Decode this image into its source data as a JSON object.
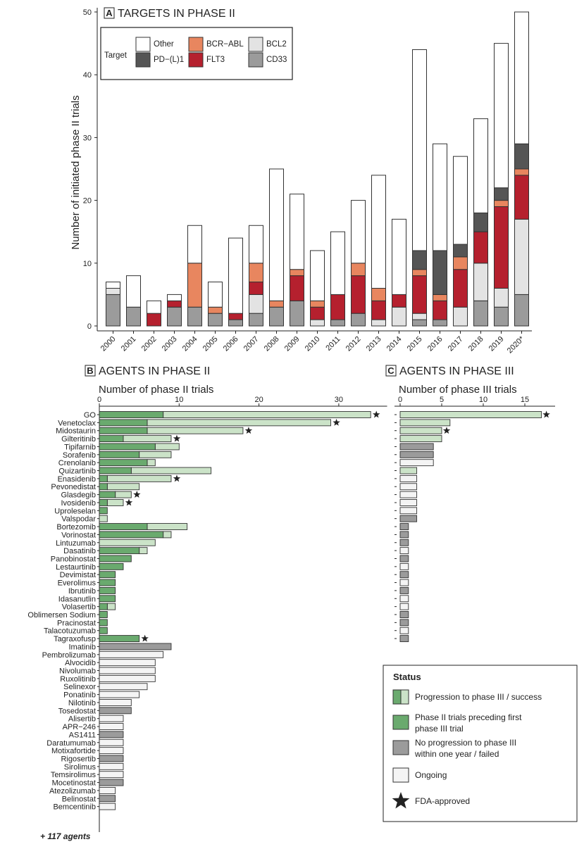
{
  "panel_a": {
    "letter": "A",
    "title": "TARGETS IN PHASE II"
  },
  "panel_b": {
    "letter": "B",
    "title": "AGENTS IN PHASE II",
    "axis_title": "Number of phase II trials",
    "more_agents": "+ 117 agents"
  },
  "panel_c": {
    "letter": "C",
    "title": "AGENTS IN PHASE III",
    "axis_title": "Number of phase III trials"
  },
  "legend_a": {
    "title": "Target",
    "entries": [
      {
        "label": "Other",
        "color": "#ffffff"
      },
      {
        "label": "PD−(L)1",
        "color": "#555555"
      },
      {
        "label": "BCR−ABL",
        "color": "#e8865f"
      },
      {
        "label": "FLT3",
        "color": "#b5202e"
      },
      {
        "label": "BCL2",
        "color": "#e3e3e3"
      },
      {
        "label": "CD33",
        "color": "#9b9b9b"
      }
    ]
  },
  "legend_status": {
    "title": "Status",
    "entries": [
      {
        "key": "progression",
        "text": [
          "Progression to phase III / success"
        ]
      },
      {
        "key": "preceding",
        "text": [
          "Phase II trials preceding first",
          "phase III trial"
        ]
      },
      {
        "key": "failed",
        "text": [
          "No progression to phase III",
          "within one year / failed"
        ]
      },
      {
        "key": "ongoing",
        "text": [
          "Ongoing"
        ]
      },
      {
        "key": "fda",
        "text": [
          "FDA-approved"
        ]
      }
    ]
  },
  "colors": {
    "green_dark": "#6aaa6e",
    "green_light": "#cbe3c8",
    "grey_failed": "#9b9b9b",
    "ongoing": "#f4f4f4",
    "outline": "#333333"
  },
  "chart_data": [
    {
      "type": "bar",
      "stacked": true,
      "panel": "A",
      "title": "TARGETS IN PHASE II",
      "ylabel": "Number of initiated phase II trials",
      "ylim": [
        0,
        50
      ],
      "yticks": [
        0,
        10,
        20,
        30,
        40,
        50
      ],
      "categories": [
        "2000",
        "2001",
        "2002",
        "2003",
        "2004",
        "2005",
        "2006",
        "2007",
        "2008",
        "2009",
        "2010",
        "2011",
        "2012",
        "2013",
        "2014",
        "2015",
        "2016",
        "2017",
        "2018",
        "2019",
        "2020*"
      ],
      "stack_order": [
        "CD33",
        "BCL2",
        "FLT3",
        "BCR−ABL",
        "PD−(L)1",
        "Other"
      ],
      "series": [
        {
          "name": "CD33",
          "values": [
            5,
            3,
            0,
            3,
            3,
            2,
            1,
            2,
            3,
            4,
            0,
            1,
            2,
            0,
            0,
            1,
            1,
            0,
            4,
            3,
            5
          ]
        },
        {
          "name": "BCL2",
          "values": [
            1,
            0,
            0,
            0,
            0,
            0,
            0,
            3,
            0,
            0,
            1,
            0,
            0,
            1,
            3,
            1,
            0,
            3,
            6,
            3,
            12
          ]
        },
        {
          "name": "FLT3",
          "values": [
            0,
            0,
            2,
            1,
            0,
            0,
            1,
            2,
            0,
            4,
            2,
            4,
            6,
            3,
            2,
            6,
            3,
            6,
            5,
            13,
            7
          ]
        },
        {
          "name": "BCR−ABL",
          "values": [
            0,
            0,
            0,
            0,
            7,
            1,
            0,
            3,
            1,
            1,
            1,
            0,
            2,
            2,
            0,
            1,
            1,
            2,
            0,
            1,
            1
          ]
        },
        {
          "name": "PD−(L)1",
          "values": [
            0,
            0,
            0,
            0,
            0,
            0,
            0,
            0,
            0,
            0,
            0,
            0,
            0,
            0,
            0,
            3,
            7,
            2,
            3,
            2,
            4
          ]
        },
        {
          "name": "Other",
          "values": [
            1,
            5,
            2,
            1,
            6,
            4,
            12,
            6,
            21,
            12,
            8,
            10,
            10,
            18,
            12,
            32,
            17,
            14,
            15,
            23,
            21
          ]
        }
      ]
    },
    {
      "type": "bar",
      "orientation": "horizontal",
      "panel": "B",
      "title": "AGENTS IN PHASE II",
      "xlabel": "Number of phase II trials",
      "xlim": [
        0,
        35
      ],
      "xticks": [
        0,
        10,
        20,
        30
      ],
      "agents": [
        {
          "name": "GO",
          "preceding": 8,
          "total": 34,
          "status": "progression",
          "p3": 17,
          "fda": true
        },
        {
          "name": "Venetoclax",
          "preceding": 6,
          "total": 29,
          "status": "progression",
          "p3": 6,
          "fda": true
        },
        {
          "name": "Midostaurin",
          "preceding": 6,
          "total": 18,
          "status": "progression",
          "p3": 5,
          "fda": true
        },
        {
          "name": "Gilteritinib",
          "preceding": 3,
          "total": 9,
          "status": "progression",
          "p3": 5,
          "fda": true
        },
        {
          "name": "Tipifarnib",
          "preceding": 7,
          "total": 10,
          "status": "progression",
          "p3": 4,
          "fda": false
        },
        {
          "name": "Sorafenib",
          "preceding": 5,
          "total": 9,
          "status": "progression",
          "p3": 4,
          "fda": false
        },
        {
          "name": "Crenolanib",
          "preceding": 6,
          "total": 7,
          "status": "progression",
          "p3": 4,
          "fda": false
        },
        {
          "name": "Quizartinib",
          "preceding": 4,
          "total": 14,
          "status": "progression",
          "p3": 2,
          "fda": false
        },
        {
          "name": "Enasidenib",
          "preceding": 1,
          "total": 9,
          "status": "progression",
          "p3": 2,
          "fda": true
        },
        {
          "name": "Pevonedistat",
          "preceding": 1,
          "total": 5,
          "status": "progression",
          "p3": 2,
          "fda": false
        },
        {
          "name": "Glasdegib",
          "preceding": 2,
          "total": 4,
          "status": "progression",
          "p3": 2,
          "fda": true
        },
        {
          "name": "Ivosidenib",
          "preceding": 1,
          "total": 3,
          "status": "progression",
          "p3": 2,
          "fda": true
        },
        {
          "name": "Uproleselan",
          "preceding": 1,
          "total": 1,
          "status": "progression",
          "p3": 2,
          "fda": false
        },
        {
          "name": "Valspodar",
          "preceding": 0,
          "total": 1,
          "status": "progression",
          "p3": 2,
          "fda": false
        },
        {
          "name": "Bortezomib",
          "preceding": 6,
          "total": 11,
          "status": "progression",
          "p3": 1,
          "fda": false
        },
        {
          "name": "Vorinostat",
          "preceding": 8,
          "total": 9,
          "status": "progression",
          "p3": 1,
          "fda": false
        },
        {
          "name": "Lintuzumab",
          "preceding": 0,
          "total": 7,
          "status": "progression",
          "p3": 1,
          "fda": false
        },
        {
          "name": "Dasatinib",
          "preceding": 5,
          "total": 6,
          "status": "progression",
          "p3": 1,
          "fda": false
        },
        {
          "name": "Panobinostat",
          "preceding": 4,
          "total": 4,
          "status": "progression",
          "p3": 1,
          "fda": false
        },
        {
          "name": "Lestaurtinib",
          "preceding": 3,
          "total": 3,
          "status": "progression",
          "p3": 1,
          "fda": false
        },
        {
          "name": "Devimistat",
          "preceding": 2,
          "total": 2,
          "status": "progression",
          "p3": 1,
          "fda": false
        },
        {
          "name": "Everolimus",
          "preceding": 2,
          "total": 2,
          "status": "progression",
          "p3": 1,
          "fda": false
        },
        {
          "name": "Ibrutinib",
          "preceding": 2,
          "total": 2,
          "status": "progression",
          "p3": 1,
          "fda": false
        },
        {
          "name": "Idasanutlin",
          "preceding": 2,
          "total": 2,
          "status": "progression",
          "p3": 1,
          "fda": false
        },
        {
          "name": "Volasertib",
          "preceding": 1,
          "total": 2,
          "status": "progression",
          "p3": 1,
          "fda": false
        },
        {
          "name": "Oblimersen Sodium",
          "preceding": 1,
          "total": 1,
          "status": "progression",
          "p3": 1,
          "fda": false
        },
        {
          "name": "Pracinostat",
          "preceding": 1,
          "total": 1,
          "status": "progression",
          "p3": 1,
          "fda": false
        },
        {
          "name": "Talacotuzumab",
          "preceding": 1,
          "total": 1,
          "status": "progression",
          "p3": 1,
          "fda": false
        },
        {
          "name": "Tagraxofusp",
          "preceding": 5,
          "total": 5,
          "status": "progression",
          "p3": 1,
          "fda": true
        },
        {
          "name": "Imatinib",
          "total": 9,
          "status": "failed"
        },
        {
          "name": "Pembrolizumab",
          "total": 8,
          "status": "ongoing"
        },
        {
          "name": "Alvocidib",
          "total": 7,
          "status": "ongoing"
        },
        {
          "name": "Nivolumab",
          "total": 7,
          "status": "ongoing"
        },
        {
          "name": "Ruxolitinib",
          "total": 7,
          "status": "ongoing"
        },
        {
          "name": "Selinexor",
          "total": 6,
          "status": "ongoing"
        },
        {
          "name": "Ponatinib",
          "total": 5,
          "status": "ongoing"
        },
        {
          "name": "Nilotinib",
          "total": 4,
          "status": "ongoing"
        },
        {
          "name": "Tosedostat",
          "total": 4,
          "status": "failed"
        },
        {
          "name": "Alisertib",
          "total": 3,
          "status": "ongoing"
        },
        {
          "name": "APR−246",
          "total": 3,
          "status": "ongoing"
        },
        {
          "name": "AS1411",
          "total": 3,
          "status": "failed"
        },
        {
          "name": "Daratumumab",
          "total": 3,
          "status": "ongoing"
        },
        {
          "name": "Motixafortide",
          "total": 3,
          "status": "ongoing"
        },
        {
          "name": "Rigosertib",
          "total": 3,
          "status": "failed"
        },
        {
          "name": "Sirolimus",
          "total": 3,
          "status": "ongoing"
        },
        {
          "name": "Temsirolimus",
          "total": 3,
          "status": "ongoing"
        },
        {
          "name": "Mocetinostat",
          "total": 3,
          "status": "failed"
        },
        {
          "name": "Atezolizumab",
          "total": 2,
          "status": "ongoing"
        },
        {
          "name": "Belinostat",
          "total": 2,
          "status": "failed"
        },
        {
          "name": "Bemcentinib",
          "total": 2,
          "status": "ongoing"
        }
      ]
    },
    {
      "type": "bar",
      "orientation": "horizontal",
      "panel": "C",
      "title": "AGENTS IN PHASE III",
      "xlabel": "Number of phase III trials",
      "xlim": [
        0,
        19
      ],
      "xticks": [
        0,
        5,
        10,
        15
      ],
      "rows": [
        {
          "value": 17,
          "status": "progression",
          "fda": true
        },
        {
          "value": 6,
          "status": "progression",
          "fda": false
        },
        {
          "value": 5,
          "status": "progression",
          "fda": true
        },
        {
          "value": 5,
          "status": "progression",
          "fda": false
        },
        {
          "value": 4,
          "status": "failed",
          "fda": false
        },
        {
          "value": 4,
          "status": "failed",
          "fda": false
        },
        {
          "value": 4,
          "status": "ongoing",
          "fda": false
        },
        {
          "value": 2,
          "status": "progression",
          "fda": false
        },
        {
          "value": 2,
          "status": "ongoing",
          "fda": false
        },
        {
          "value": 2,
          "status": "ongoing",
          "fda": false
        },
        {
          "value": 2,
          "status": "ongoing",
          "fda": false
        },
        {
          "value": 2,
          "status": "ongoing",
          "fda": false
        },
        {
          "value": 2,
          "status": "ongoing",
          "fda": false
        },
        {
          "value": 2,
          "status": "failed",
          "fda": false
        },
        {
          "value": 1,
          "status": "failed",
          "fda": false
        },
        {
          "value": 1,
          "status": "failed",
          "fda": false
        },
        {
          "value": 1,
          "status": "failed",
          "fda": false
        },
        {
          "value": 1,
          "status": "ongoing",
          "fda": false
        },
        {
          "value": 1,
          "status": "failed",
          "fda": false
        },
        {
          "value": 1,
          "status": "ongoing",
          "fda": false
        },
        {
          "value": 1,
          "status": "failed",
          "fda": false
        },
        {
          "value": 1,
          "status": "ongoing",
          "fda": false
        },
        {
          "value": 1,
          "status": "failed",
          "fda": false
        },
        {
          "value": 1,
          "status": "ongoing",
          "fda": false
        },
        {
          "value": 1,
          "status": "ongoing",
          "fda": false
        },
        {
          "value": 1,
          "status": "failed",
          "fda": false
        },
        {
          "value": 1,
          "status": "failed",
          "fda": false
        },
        {
          "value": 1,
          "status": "ongoing",
          "fda": false
        },
        {
          "value": 1,
          "status": "failed",
          "fda": false
        }
      ]
    }
  ]
}
